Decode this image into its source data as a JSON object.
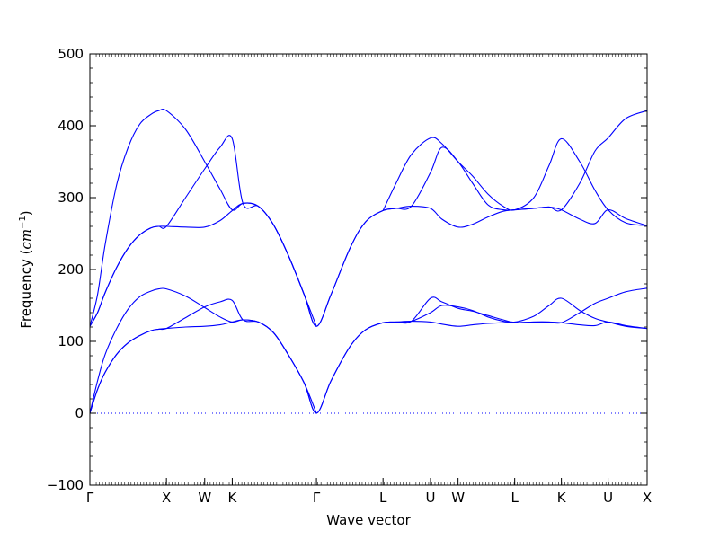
{
  "chart_data": {
    "type": "line",
    "title": "",
    "xlabel": "Wave vector",
    "ylabel_prefix": "Frequency (",
    "ylabel_math": "cm",
    "ylabel_exp": "−1",
    "ylabel_suffix": ")",
    "ylim": [
      -100,
      500
    ],
    "yticks": [
      -100,
      0,
      100,
      200,
      300,
      400,
      500
    ],
    "ytick_labels": [
      "−100",
      "0",
      "100",
      "200",
      "300",
      "400",
      "500"
    ],
    "xlim": [
      0,
      7.28
    ],
    "high_symmetry_points": [
      {
        "label": "Γ",
        "x": 0.0
      },
      {
        "label": "X",
        "x": 1.0
      },
      {
        "label": "W",
        "x": 1.5
      },
      {
        "label": "K",
        "x": 1.86
      },
      {
        "label": "Γ",
        "x": 2.96
      },
      {
        "label": "L",
        "x": 3.83
      },
      {
        "label": "U",
        "x": 4.45
      },
      {
        "label": "W",
        "x": 4.81
      },
      {
        "label": "L",
        "x": 5.55
      },
      {
        "label": "K",
        "x": 6.16
      },
      {
        "label": "U",
        "x": 6.77
      },
      {
        "label": "X",
        "x": 7.28
      }
    ],
    "zero_line": {
      "style": "dotted"
    },
    "line_color": "#0000ff",
    "series": [
      {
        "x": [
          0,
          0.1,
          0.2,
          0.35,
          0.5,
          0.65,
          0.8,
          0.9,
          1.0,
          1.25,
          1.5,
          1.7,
          1.86,
          2.0,
          2.2,
          2.4,
          2.6,
          2.8,
          2.96,
          3.15,
          3.4,
          3.6,
          3.83,
          4.0,
          4.2,
          4.45,
          4.6,
          4.81,
          5.0,
          5.2,
          5.4,
          5.55,
          5.8,
          6.0,
          6.16,
          6.4,
          6.6,
          6.77,
          7.0,
          7.28
        ],
        "y": [
          0,
          33,
          57,
          82,
          98,
          108,
          115,
          117,
          118,
          120,
          121,
          123,
          127,
          130,
          127,
          112,
          80,
          42,
          0,
          45,
          93,
          116,
          126,
          127,
          128,
          127,
          124,
          121,
          123,
          125,
          126,
          126,
          127,
          127,
          126,
          123,
          122,
          127,
          122,
          118
        ]
      },
      {
        "x": [
          0,
          0.1,
          0.2,
          0.35,
          0.5,
          0.65,
          0.8,
          0.9,
          1.0,
          1.25,
          1.5,
          1.7,
          1.86,
          2.0,
          2.2,
          2.4,
          2.6,
          2.8,
          2.96,
          3.15,
          3.4,
          3.6,
          3.83,
          4.0,
          4.2,
          4.45,
          4.6,
          4.81,
          5.0,
          5.2,
          5.4,
          5.55,
          5.8,
          6.0,
          6.16,
          6.4,
          6.6,
          6.77,
          7.0,
          7.28
        ],
        "y": [
          0,
          33,
          57,
          82,
          98,
          108,
          115,
          117,
          118,
          133,
          148,
          155,
          157,
          130,
          127,
          112,
          80,
          42,
          0,
          45,
          93,
          116,
          126,
          127,
          128,
          140,
          150,
          148,
          143,
          134,
          128,
          126,
          127,
          127,
          126,
          140,
          153,
          160,
          169,
          174
        ]
      },
      {
        "x": [
          0,
          0.1,
          0.2,
          0.35,
          0.5,
          0.65,
          0.8,
          0.9,
          1.0,
          1.25,
          1.5,
          1.7,
          1.86,
          2.0,
          2.2,
          2.4,
          2.6,
          2.8,
          2.96
        ],
        "y": [
          0,
          45,
          82,
          118,
          145,
          162,
          170,
          173,
          173,
          163,
          147,
          134,
          127,
          130,
          127,
          112,
          80,
          42,
          0
        ]
      },
      {
        "x": [
          3.83,
          4.0,
          4.2,
          4.45,
          4.6,
          4.81,
          5.0,
          5.2,
          5.4,
          5.55,
          5.8,
          6.0,
          6.16,
          6.4,
          6.6,
          6.77,
          7.0,
          7.28
        ],
        "y": [
          126,
          127,
          128,
          160,
          155,
          146,
          142,
          136,
          130,
          127,
          135,
          150,
          160,
          143,
          132,
          127,
          121,
          118
        ]
      },
      {
        "x": [
          0,
          0.1,
          0.2,
          0.35,
          0.5,
          0.65,
          0.8,
          0.9,
          1.0,
          1.25,
          1.5,
          1.7,
          1.86,
          2.0,
          2.2,
          2.4,
          2.6,
          2.8,
          2.96,
          3.15,
          3.4,
          3.6,
          3.83,
          4.0,
          4.2,
          4.45,
          4.6,
          4.81,
          5.0,
          5.2,
          5.4,
          5.55,
          5.8,
          6.0,
          6.16,
          6.4,
          6.6,
          6.77,
          7.0,
          7.28
        ],
        "y": [
          121,
          140,
          168,
          203,
          230,
          248,
          258,
          260,
          260,
          259,
          259,
          268,
          282,
          292,
          288,
          262,
          218,
          165,
          121,
          165,
          230,
          266,
          282,
          285,
          288,
          285,
          270,
          259,
          263,
          273,
          281,
          283,
          285,
          287,
          283,
          270,
          264,
          283,
          271,
          261
        ]
      },
      {
        "x": [
          0,
          0.1,
          0.2,
          0.35,
          0.5,
          0.65,
          0.8,
          0.9,
          1.0,
          1.25,
          1.5,
          1.7,
          1.86,
          2.0,
          2.2,
          2.4,
          2.6,
          2.8,
          2.96,
          3.15,
          3.4,
          3.6,
          3.83,
          4.0,
          4.2,
          4.45,
          4.6,
          4.81,
          5.0,
          5.2,
          5.4,
          5.55,
          5.8,
          6.0,
          6.16,
          6.4,
          6.6,
          6.77,
          7.0,
          7.28
        ],
        "y": [
          121,
          140,
          168,
          203,
          230,
          248,
          258,
          260,
          260,
          300,
          340,
          370,
          382,
          292,
          288,
          262,
          218,
          165,
          121,
          165,
          230,
          266,
          282,
          285,
          288,
          335,
          370,
          350,
          320,
          290,
          283,
          283,
          285,
          287,
          283,
          320,
          365,
          383,
          410,
          421
        ]
      },
      {
        "x": [
          0,
          0.1,
          0.2,
          0.35,
          0.5,
          0.65,
          0.8,
          0.9,
          1.0,
          1.25,
          1.5,
          1.7,
          1.86,
          2.0,
          2.2,
          2.4,
          2.6,
          2.8,
          2.96
        ],
        "y": [
          121,
          165,
          235,
          318,
          370,
          402,
          416,
          421,
          421,
          395,
          350,
          312,
          283,
          292,
          288,
          262,
          218,
          165,
          121
        ]
      },
      {
        "x": [
          3.83,
          4.0,
          4.2,
          4.45,
          4.6,
          4.81,
          5.0,
          5.2,
          5.4,
          5.55,
          5.8,
          6.0,
          6.16,
          6.4,
          6.6,
          6.77,
          7.0,
          7.28
        ],
        "y": [
          282,
          320,
          360,
          383,
          375,
          350,
          330,
          305,
          288,
          283,
          300,
          345,
          382,
          350,
          310,
          283,
          265,
          261
        ]
      }
    ]
  }
}
